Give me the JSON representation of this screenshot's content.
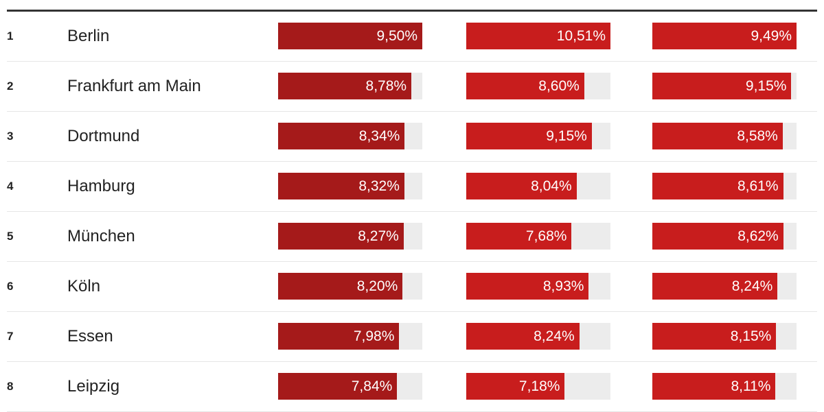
{
  "chart_data": {
    "type": "bar",
    "categories": [
      "Berlin",
      "Frankfurt am Main",
      "Dortmund",
      "Hamburg",
      "München",
      "Köln",
      "Essen",
      "Leipzig"
    ],
    "ranks": [
      "1",
      "2",
      "3",
      "4",
      "5",
      "6",
      "7",
      "8"
    ],
    "series": [
      {
        "values": [
          9.5,
          8.78,
          8.34,
          8.32,
          8.27,
          8.2,
          7.98,
          7.84
        ],
        "labels": [
          "9,50%",
          "8,78%",
          "8,34%",
          "8,32%",
          "8,27%",
          "8,20%",
          "7,98%",
          "7,84%"
        ],
        "color": "#a51a1a"
      },
      {
        "values": [
          10.51,
          8.6,
          9.15,
          8.04,
          7.68,
          8.93,
          8.24,
          7.18
        ],
        "labels": [
          "10,51%",
          "8,60%",
          "9,15%",
          "8,04%",
          "7,68%",
          "8,93%",
          "8,24%",
          "7,18%"
        ],
        "color": "#c81d1d"
      },
      {
        "values": [
          9.49,
          9.15,
          8.58,
          8.61,
          8.62,
          8.24,
          8.15,
          8.11
        ],
        "labels": [
          "9,49%",
          "9,15%",
          "8,58%",
          "8,61%",
          "8,62%",
          "8,24%",
          "8,15%",
          "8,11%"
        ],
        "color": "#c81d1d"
      }
    ],
    "track_color": "#ececec",
    "grid": false
  }
}
